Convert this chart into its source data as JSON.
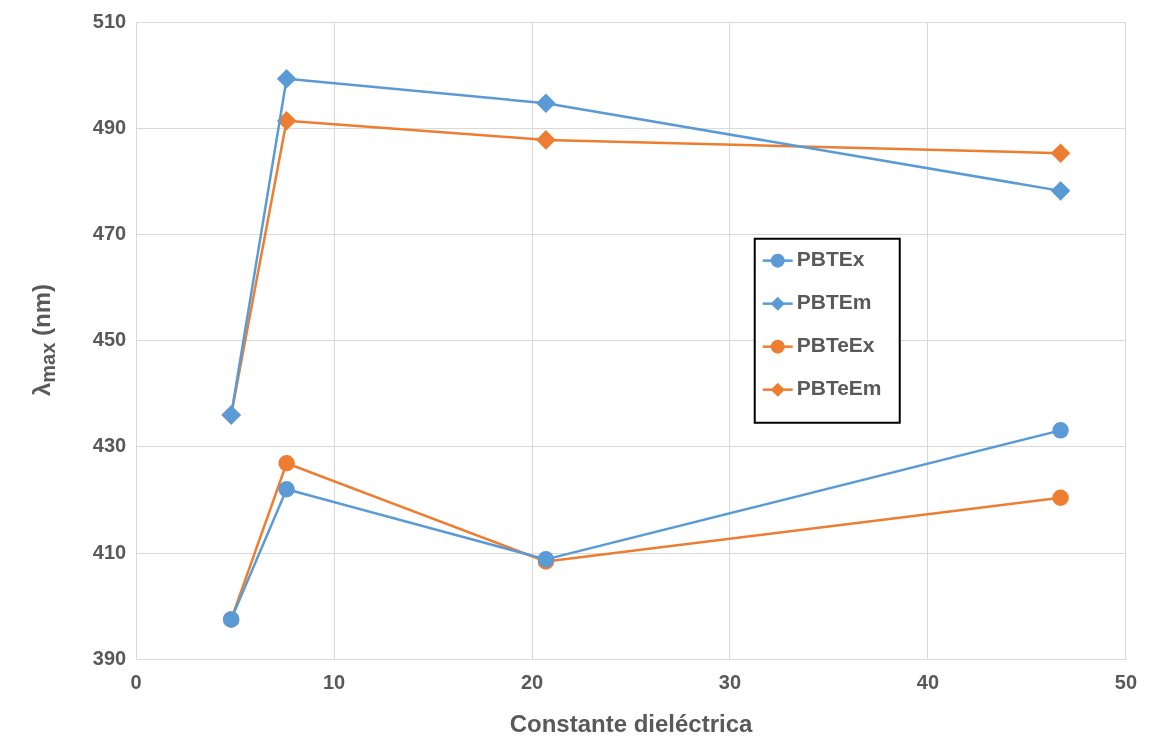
{
  "chart_data": {
    "type": "line",
    "xlabel": "Constante dieléctrica",
    "ylabel": "λ$_{max}$ (nm)",
    "xlim": [
      0,
      50
    ],
    "xticks": [
      0,
      10,
      20,
      30,
      40,
      50
    ],
    "ylim": [
      390,
      510
    ],
    "yticks": [
      390,
      410,
      430,
      450,
      470,
      490,
      510
    ],
    "grid": true,
    "legend": "right",
    "line_style": "solid",
    "series": [
      {
        "name": "PBTEx",
        "color": "#5b9bd5",
        "marker": "circle",
        "x": [
          4.8,
          7.6,
          20.7,
          46.7
        ],
        "values": [
          397.5,
          422,
          408.8,
          433.1
        ]
      },
      {
        "name": "PBTEm",
        "color": "#5b9bd5",
        "marker": "diamond",
        "x": [
          4.8,
          7.6,
          20.7,
          46.7
        ],
        "values": [
          436,
          499.3,
          494.7,
          478.2
        ]
      },
      {
        "name": "PBTeEx",
        "color": "#ed7d31",
        "marker": "circle",
        "x": [
          4.8,
          7.6,
          20.7,
          46.7
        ],
        "values": [
          397.5,
          426.9,
          408.4,
          420.4
        ]
      },
      {
        "name": "PBTeEm",
        "color": "#ed7d31",
        "marker": "diamond",
        "x": [
          4.8,
          7.6,
          20.7,
          46.7
        ],
        "values": [
          436,
          491.4,
          487.8,
          485.3
        ]
      }
    ]
  }
}
